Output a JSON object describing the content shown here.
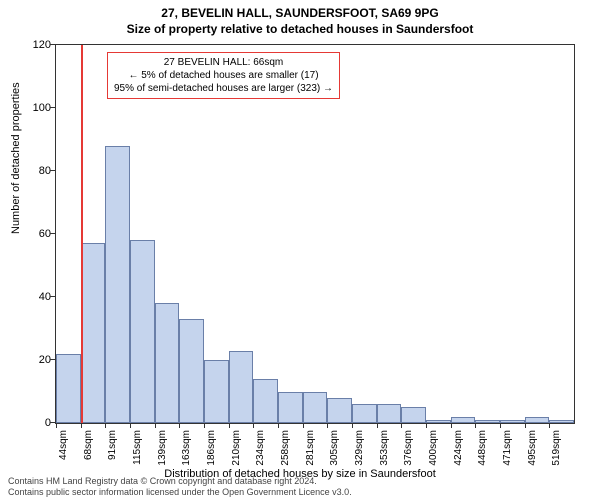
{
  "header": {
    "address": "27, BEVELIN HALL, SAUNDERSFOOT, SA69 9PG",
    "subtitle": "Size of property relative to detached houses in Saundersfoot"
  },
  "chart": {
    "type": "histogram",
    "y_axis": {
      "label": "Number of detached properties",
      "min": 0,
      "max": 120,
      "ticks": [
        0,
        20,
        40,
        60,
        80,
        100,
        120
      ]
    },
    "x_axis": {
      "label": "Distribution of detached houses by size in Saundersfoot",
      "tick_labels": [
        "44sqm",
        "68sqm",
        "91sqm",
        "115sqm",
        "139sqm",
        "163sqm",
        "186sqm",
        "210sqm",
        "234sqm",
        "258sqm",
        "281sqm",
        "305sqm",
        "329sqm",
        "353sqm",
        "376sqm",
        "400sqm",
        "424sqm",
        "448sqm",
        "471sqm",
        "495sqm",
        "519sqm"
      ]
    },
    "bars": [
      22,
      57,
      88,
      58,
      38,
      33,
      20,
      23,
      14,
      10,
      10,
      8,
      6,
      6,
      5,
      1,
      2,
      1,
      1,
      2,
      1
    ],
    "bar_fill": "#c5d4ed",
    "bar_border": "#6a7fa8",
    "reference_line": {
      "color": "#e53935",
      "bin_index": 1,
      "position_fraction_of_bin": 0.0
    },
    "annotation": {
      "line1": "27 BEVELIN HALL: 66sqm",
      "line2": "← 5% of detached houses are smaller (17)",
      "line3": "95% of semi-detached houses are larger (323) →",
      "border_color": "#e53935"
    },
    "background_color": "#ffffff",
    "plot_border_color": "#333333"
  },
  "footer": {
    "line1": "Contains HM Land Registry data © Crown copyright and database right 2024.",
    "line2": "Contains public sector information licensed under the Open Government Licence v3.0."
  }
}
